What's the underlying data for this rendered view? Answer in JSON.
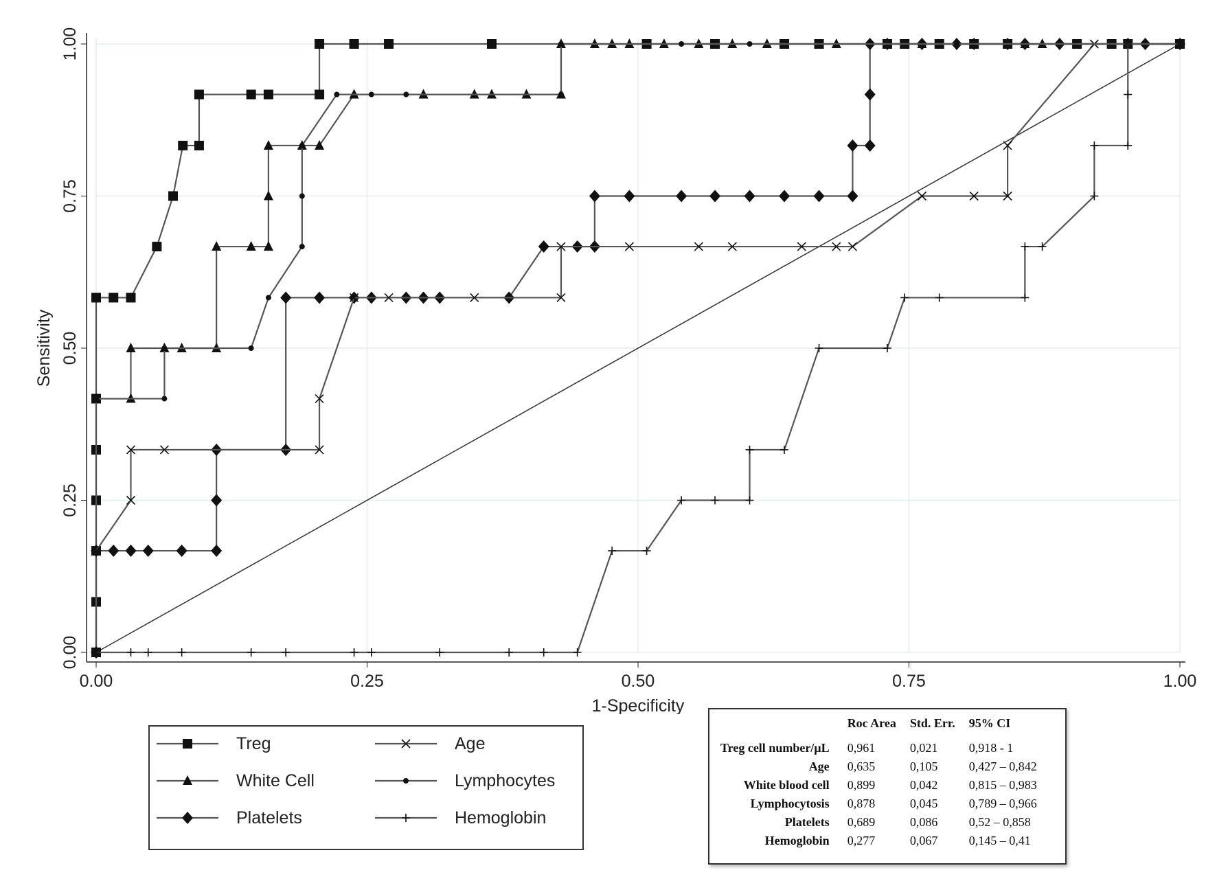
{
  "chart_data": {
    "type": "line",
    "xlabel": "1-Specificity",
    "ylabel": "Sensitivity",
    "xlim": [
      0,
      1
    ],
    "ylim": [
      0,
      1
    ],
    "xticks": [
      "0.00",
      "0.25",
      "0.50",
      "0.75",
      "1.00"
    ],
    "yticks": [
      "0.00",
      "0.25",
      "0.50",
      "0.75",
      "1.00"
    ],
    "grid": true,
    "reference_line": "diagonal",
    "legend_position": "bottom-left",
    "series": [
      {
        "name": "Treg",
        "marker": "square",
        "points": [
          [
            0,
            0
          ],
          [
            0,
            0.083
          ],
          [
            0,
            0.167
          ],
          [
            0,
            0.25
          ],
          [
            0,
            0.333
          ],
          [
            0,
            0.417
          ],
          [
            0,
            0.583
          ],
          [
            0.016,
            0.583
          ],
          [
            0.032,
            0.583
          ],
          [
            0.056,
            0.667
          ],
          [
            0.071,
            0.75
          ],
          [
            0.08,
            0.833
          ],
          [
            0.095,
            0.833
          ],
          [
            0.095,
            0.917
          ],
          [
            0.143,
            0.917
          ],
          [
            0.159,
            0.917
          ],
          [
            0.206,
            0.917
          ],
          [
            0.206,
            1
          ],
          [
            0.238,
            1
          ],
          [
            0.27,
            1
          ],
          [
            0.365,
            1
          ],
          [
            0.508,
            1
          ],
          [
            0.571,
            1
          ],
          [
            0.635,
            1
          ],
          [
            0.667,
            1
          ],
          [
            0.73,
            1
          ],
          [
            0.746,
            1
          ],
          [
            0.778,
            1
          ],
          [
            0.81,
            1
          ],
          [
            0.841,
            1
          ],
          [
            0.905,
            1
          ],
          [
            0.937,
            1
          ],
          [
            0.952,
            1
          ],
          [
            1,
            1
          ]
        ]
      },
      {
        "name": "White Cell",
        "marker": "triangle",
        "points": [
          [
            0,
            0
          ],
          [
            0,
            0.167
          ],
          [
            0,
            0.417
          ],
          [
            0.032,
            0.417
          ],
          [
            0.032,
            0.5
          ],
          [
            0.063,
            0.5
          ],
          [
            0.079,
            0.5
          ],
          [
            0.111,
            0.5
          ],
          [
            0.111,
            0.667
          ],
          [
            0.143,
            0.667
          ],
          [
            0.159,
            0.667
          ],
          [
            0.159,
            0.75
          ],
          [
            0.159,
            0.833
          ],
          [
            0.19,
            0.833
          ],
          [
            0.206,
            0.833
          ],
          [
            0.238,
            0.917
          ],
          [
            0.302,
            0.917
          ],
          [
            0.349,
            0.917
          ],
          [
            0.365,
            0.917
          ],
          [
            0.397,
            0.917
          ],
          [
            0.429,
            0.917
          ],
          [
            0.429,
            1
          ],
          [
            0.46,
            1
          ],
          [
            0.476,
            1
          ],
          [
            0.492,
            1
          ],
          [
            0.524,
            1
          ],
          [
            0.556,
            1
          ],
          [
            0.587,
            1
          ],
          [
            0.619,
            1
          ],
          [
            0.683,
            1
          ],
          [
            0.762,
            1
          ],
          [
            0.857,
            1
          ],
          [
            0.873,
            1
          ],
          [
            1,
            1
          ]
        ]
      },
      {
        "name": "Platelets",
        "marker": "diamond",
        "points": [
          [
            0,
            0
          ],
          [
            0,
            0.167
          ],
          [
            0.016,
            0.167
          ],
          [
            0.032,
            0.167
          ],
          [
            0.048,
            0.167
          ],
          [
            0.079,
            0.167
          ],
          [
            0.111,
            0.167
          ],
          [
            0.111,
            0.25
          ],
          [
            0.111,
            0.333
          ],
          [
            0.175,
            0.333
          ],
          [
            0.175,
            0.583
          ],
          [
            0.206,
            0.583
          ],
          [
            0.238,
            0.583
          ],
          [
            0.254,
            0.583
          ],
          [
            0.286,
            0.583
          ],
          [
            0.302,
            0.583
          ],
          [
            0.317,
            0.583
          ],
          [
            0.381,
            0.583
          ],
          [
            0.413,
            0.667
          ],
          [
            0.444,
            0.667
          ],
          [
            0.46,
            0.667
          ],
          [
            0.46,
            0.75
          ],
          [
            0.492,
            0.75
          ],
          [
            0.54,
            0.75
          ],
          [
            0.571,
            0.75
          ],
          [
            0.603,
            0.75
          ],
          [
            0.635,
            0.75
          ],
          [
            0.667,
            0.75
          ],
          [
            0.698,
            0.75
          ],
          [
            0.698,
            0.833
          ],
          [
            0.714,
            0.833
          ],
          [
            0.714,
            0.917
          ],
          [
            0.714,
            1
          ],
          [
            0.73,
            1
          ],
          [
            0.762,
            1
          ],
          [
            0.794,
            1
          ],
          [
            0.81,
            1
          ],
          [
            0.841,
            1
          ],
          [
            0.857,
            1
          ],
          [
            0.889,
            1
          ],
          [
            0.952,
            1
          ],
          [
            0.968,
            1
          ],
          [
            1,
            1
          ]
        ]
      },
      {
        "name": "Age",
        "marker": "x",
        "points": [
          [
            0,
            0.167
          ],
          [
            0.032,
            0.25
          ],
          [
            0.032,
            0.333
          ],
          [
            0.063,
            0.333
          ],
          [
            0.206,
            0.333
          ],
          [
            0.206,
            0.417
          ],
          [
            0.238,
            0.583
          ],
          [
            0.27,
            0.583
          ],
          [
            0.349,
            0.583
          ],
          [
            0.429,
            0.583
          ],
          [
            0.429,
            0.667
          ],
          [
            0.492,
            0.667
          ],
          [
            0.556,
            0.667
          ],
          [
            0.587,
            0.667
          ],
          [
            0.651,
            0.667
          ],
          [
            0.683,
            0.667
          ],
          [
            0.698,
            0.667
          ],
          [
            0.762,
            0.75
          ],
          [
            0.81,
            0.75
          ],
          [
            0.841,
            0.75
          ],
          [
            0.841,
            0.833
          ],
          [
            0.921,
            1
          ],
          [
            1,
            1
          ]
        ]
      },
      {
        "name": "Lymphocytes",
        "marker": "dot",
        "points": [
          [
            0,
            0.417
          ],
          [
            0.063,
            0.417
          ],
          [
            0.063,
            0.5
          ],
          [
            0.143,
            0.5
          ],
          [
            0.159,
            0.583
          ],
          [
            0.19,
            0.667
          ],
          [
            0.19,
            0.75
          ],
          [
            0.19,
            0.833
          ],
          [
            0.222,
            0.917
          ],
          [
            0.254,
            0.917
          ],
          [
            0.286,
            0.917
          ],
          [
            0.429,
            0.917
          ],
          [
            0.429,
            1
          ],
          [
            0.54,
            1
          ],
          [
            0.603,
            1
          ],
          [
            0.794,
            1
          ],
          [
            1,
            1
          ]
        ]
      },
      {
        "name": "Hemoglobin",
        "marker": "plus",
        "points": [
          [
            0,
            0
          ],
          [
            0.032,
            0
          ],
          [
            0.048,
            0
          ],
          [
            0.079,
            0
          ],
          [
            0.143,
            0
          ],
          [
            0.175,
            0
          ],
          [
            0.238,
            0
          ],
          [
            0.254,
            0
          ],
          [
            0.317,
            0
          ],
          [
            0.381,
            0
          ],
          [
            0.413,
            0
          ],
          [
            0.444,
            0
          ],
          [
            0.476,
            0.167
          ],
          [
            0.508,
            0.167
          ],
          [
            0.54,
            0.25
          ],
          [
            0.571,
            0.25
          ],
          [
            0.603,
            0.25
          ],
          [
            0.603,
            0.333
          ],
          [
            0.635,
            0.333
          ],
          [
            0.667,
            0.5
          ],
          [
            0.73,
            0.5
          ],
          [
            0.746,
            0.583
          ],
          [
            0.778,
            0.583
          ],
          [
            0.857,
            0.583
          ],
          [
            0.857,
            0.667
          ],
          [
            0.873,
            0.667
          ],
          [
            0.921,
            0.75
          ],
          [
            0.921,
            0.833
          ],
          [
            0.952,
            0.833
          ],
          [
            0.952,
            0.917
          ],
          [
            0.952,
            1
          ],
          [
            1,
            1
          ]
        ]
      }
    ],
    "table": {
      "headers": [
        "",
        "Roc Area",
        "Std. Err.",
        "95% CI"
      ],
      "rows": [
        [
          "Treg cell number/µL",
          "0,961",
          "0,021",
          "0,918 - 1"
        ],
        [
          "Age",
          "0,635",
          "0,105",
          "0,427 – 0,842"
        ],
        [
          "White blood cell",
          "0,899",
          "0,042",
          "0,815 – 0,983"
        ],
        [
          "Lymphocytosis",
          "0,878",
          "0,045",
          "0,789 – 0,966"
        ],
        [
          "Platelets",
          "0,689",
          "0,086",
          "0,52 – 0,858"
        ],
        [
          "Hemoglobin",
          "0,277",
          "0,067",
          "0,145 – 0,41"
        ]
      ]
    }
  }
}
